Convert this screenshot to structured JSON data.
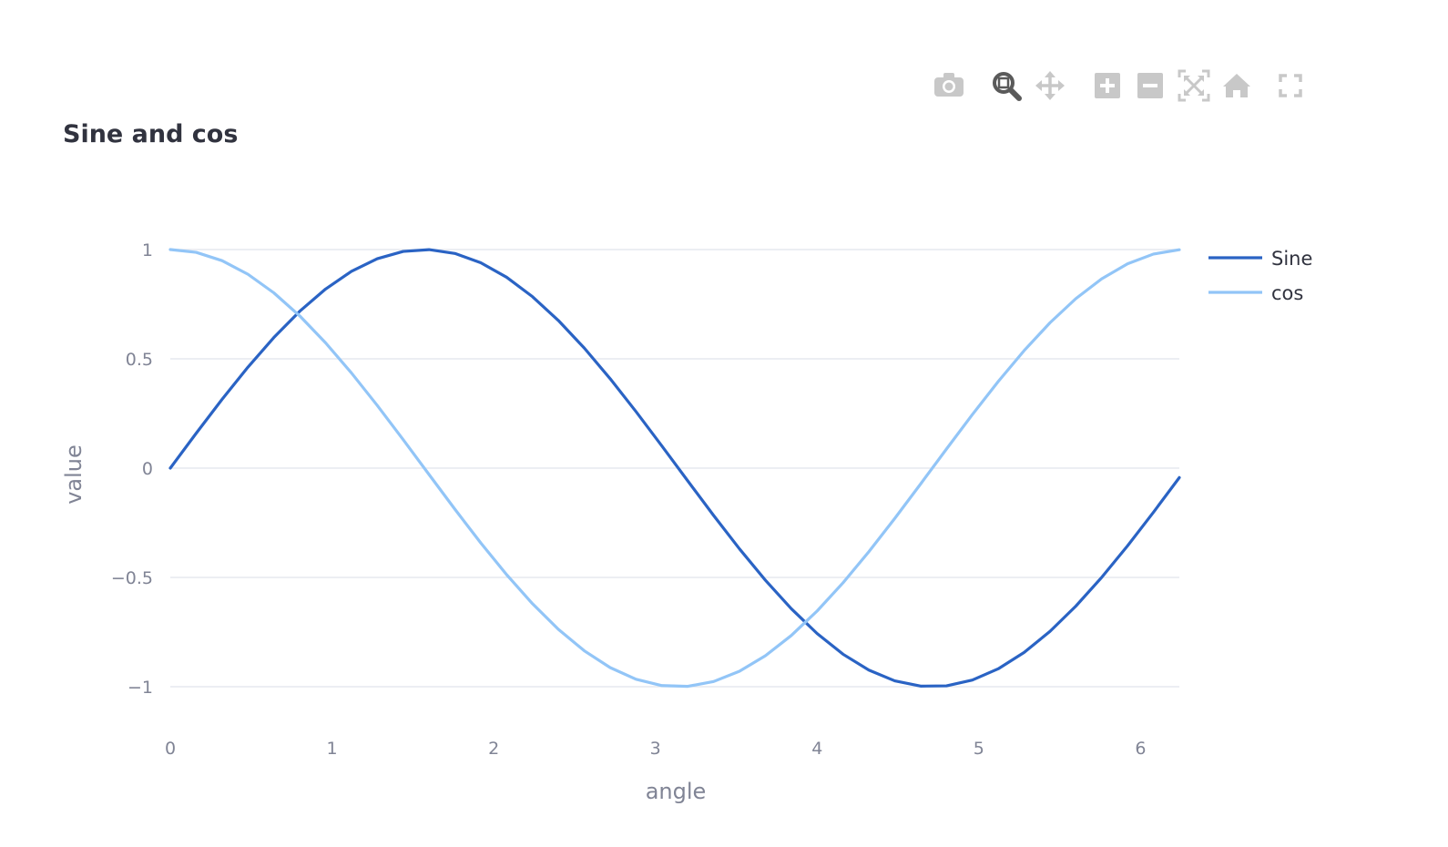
{
  "modebar": {
    "buttons": [
      {
        "name": "camera-icon",
        "icon": "camera",
        "active": false
      },
      {
        "name": "zoom-icon",
        "icon": "zoom",
        "active": true
      },
      {
        "name": "pan-icon",
        "icon": "pan",
        "active": false
      },
      {
        "name": "zoom-in-icon",
        "icon": "zoom-in",
        "active": false
      },
      {
        "name": "zoom-out-icon",
        "icon": "zoom-out",
        "active": false
      },
      {
        "name": "autoscale-icon",
        "icon": "autoscale",
        "active": false
      },
      {
        "name": "reset-axes-icon",
        "icon": "home",
        "active": false
      },
      {
        "name": "fullscreen-icon",
        "icon": "fullscreen",
        "active": false
      }
    ],
    "color": "#c8c8c8",
    "active_color": "#5a5a5a"
  },
  "chart_data": {
    "type": "line",
    "title": "Sine and cos",
    "xlabel": "angle",
    "ylabel": "value",
    "xlim": [
      0,
      6.24
    ],
    "ylim": [
      -1.15,
      1.1
    ],
    "xticks": [
      0,
      1,
      2,
      3,
      4,
      5,
      6
    ],
    "xtick_labels": [
      "0",
      "1",
      "2",
      "3",
      "4",
      "5",
      "6"
    ],
    "yticks": [
      1,
      0.5,
      0,
      -0.5,
      -1
    ],
    "ytick_labels": [
      "1",
      "0.5",
      "0",
      "−0.5",
      "−1"
    ],
    "grid": true,
    "legend_position": "top-right outside",
    "series": [
      {
        "name": "Sine",
        "color": "#2a63c4",
        "function": "sin",
        "x_start": 0,
        "x_end": 6.24,
        "x_step": 0.16
      },
      {
        "name": "cos",
        "color": "#92c5f7",
        "function": "cos",
        "x_start": 0,
        "x_end": 6.24,
        "x_step": 0.16
      }
    ]
  }
}
